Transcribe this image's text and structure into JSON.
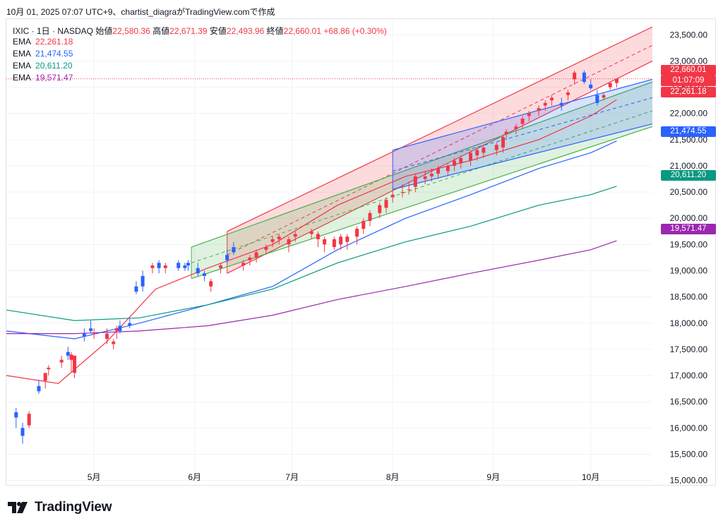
{
  "header": {
    "caption": "10月 01, 2025 07:07 UTC+9、chartist_diagraがTradingView.comで作成"
  },
  "ohlc": {
    "symbol": "IXIC · 1日 · NASDAQ",
    "open_label": "始値",
    "open": "22,580.36",
    "high_label": "高値",
    "high": "22,671.39",
    "low_label": "安値",
    "low": "22,493.96",
    "close_label": "終値",
    "close": "22,660.01",
    "change": "+68.86 (+0.30%)"
  },
  "ema_legend": [
    {
      "label": "EMA",
      "value": "22,261.18",
      "color": "#f23645"
    },
    {
      "label": "EMA",
      "value": "21,474.55",
      "color": "#2962ff"
    },
    {
      "label": "EMA",
      "value": "20,611.20",
      "color": "#089981"
    },
    {
      "label": "EMA",
      "value": "19,571.47",
      "color": "#9c27b0"
    }
  ],
  "price_plates": {
    "last_price": "22,660.01",
    "countdown": "01:07:09",
    "ema1": "22,261.18",
    "ema2": "21,474.55",
    "ema3": "20,611.20",
    "ema4": "19,571.47"
  },
  "brand": {
    "name": "TradingView"
  },
  "colors": {
    "up": "#f23645",
    "down": "#2962ff",
    "ema1": "#f23645",
    "ema2": "#2962ff",
    "ema3": "#089981",
    "ema4": "#9c27b0"
  },
  "chart_data": {
    "type": "candlestick",
    "title": "IXIC · 1日 · NASDAQ",
    "ylim": [
      14900,
      23800
    ],
    "y_ticks": [
      "23,500.00",
      "23,000.00",
      "22,500.00",
      "22,000.00",
      "21,500.00",
      "21,000.00",
      "20,500.00",
      "20,000.00",
      "19,500.00",
      "19,000.00",
      "18,500.00",
      "18,000.00",
      "17,500.00",
      "17,000.00",
      "16,500.00",
      "16,000.00",
      "15,500.00",
      "15,000.00"
    ],
    "x_ticks": [
      "5月",
      "6月",
      "7月",
      "8月",
      "9月",
      "10月"
    ],
    "x_range": [
      "2025-04-04",
      "2025-10-20"
    ],
    "candles": [
      [
        "2025-04-07",
        16300,
        16380,
        16000,
        16200
      ],
      [
        "2025-04-09",
        16000,
        16100,
        15700,
        15850
      ],
      [
        "2025-04-11",
        16050,
        16320,
        16000,
        16270
      ],
      [
        "2025-04-14",
        16800,
        16920,
        16650,
        16700
      ],
      [
        "2025-04-16",
        16900,
        17000,
        16750,
        17050
      ],
      [
        "2025-04-17",
        17120,
        17200,
        17000,
        17150
      ],
      [
        "2025-04-21",
        17250,
        17380,
        17150,
        17300
      ],
      [
        "2025-04-23",
        17450,
        17550,
        17300,
        17380
      ],
      [
        "2025-04-24",
        17300,
        17450,
        17050,
        17400
      ],
      [
        "2025-04-25",
        17050,
        17300,
        16950,
        17380
      ],
      [
        "2025-04-28",
        17800,
        17900,
        17650,
        17750
      ],
      [
        "2025-04-30",
        17900,
        18050,
        17800,
        17850
      ],
      [
        "2025-05-01",
        17800,
        17900,
        17700,
        17800
      ],
      [
        "2025-05-05",
        17700,
        17900,
        17600,
        17800
      ],
      [
        "2025-05-07",
        17600,
        17700,
        17500,
        17650
      ],
      [
        "2025-05-08",
        17850,
        17950,
        17700,
        17900
      ],
      [
        "2025-05-09",
        17950,
        18050,
        17800,
        17850
      ],
      [
        "2025-05-12",
        18000,
        18100,
        17900,
        17950
      ],
      [
        "2025-05-14",
        18700,
        18800,
        18550,
        18600
      ],
      [
        "2025-05-16",
        18900,
        19000,
        18600,
        18700
      ],
      [
        "2025-05-19",
        19050,
        19150,
        18950,
        19100
      ],
      [
        "2025-05-21",
        19150,
        19200,
        18950,
        19050
      ],
      [
        "2025-05-23",
        19050,
        19150,
        18950,
        19100
      ],
      [
        "2025-05-27",
        19150,
        19200,
        19000,
        19050
      ],
      [
        "2025-05-29",
        19100,
        19150,
        19000,
        19050
      ],
      [
        "2025-05-30",
        19150,
        19200,
        19000,
        19100
      ],
      [
        "2025-06-02",
        19050,
        19150,
        18900,
        18950
      ],
      [
        "2025-06-04",
        18950,
        19000,
        18800,
        18900
      ],
      [
        "2025-06-06",
        18700,
        18850,
        18600,
        18800
      ],
      [
        "2025-06-09",
        19050,
        19150,
        18950,
        19100
      ],
      [
        "2025-06-11",
        19300,
        19400,
        19150,
        19200
      ],
      [
        "2025-06-13",
        19450,
        19550,
        19300,
        19350
      ],
      [
        "2025-06-16",
        19100,
        19200,
        19000,
        19150
      ],
      [
        "2025-06-18",
        19200,
        19300,
        19100,
        19250
      ],
      [
        "2025-06-20",
        19250,
        19400,
        19150,
        19350
      ],
      [
        "2025-06-23",
        19400,
        19500,
        19300,
        19450
      ],
      [
        "2025-06-25",
        19550,
        19650,
        19450,
        19600
      ],
      [
        "2025-06-27",
        19600,
        19700,
        19500,
        19650
      ],
      [
        "2025-06-30",
        19500,
        19650,
        19350,
        19600
      ],
      [
        "2025-07-02",
        19650,
        19750,
        19550,
        19700
      ],
      [
        "2025-07-07",
        19700,
        19800,
        19600,
        19750
      ],
      [
        "2025-07-09",
        19600,
        19750,
        19450,
        19700
      ],
      [
        "2025-07-11",
        19500,
        19650,
        19350,
        19600
      ],
      [
        "2025-07-14",
        19450,
        19650,
        19400,
        19600
      ],
      [
        "2025-07-16",
        19500,
        19700,
        19400,
        19650
      ],
      [
        "2025-07-18",
        19550,
        19700,
        19400,
        19650
      ],
      [
        "2025-07-21",
        19650,
        19850,
        19500,
        19800
      ],
      [
        "2025-07-23",
        19800,
        20000,
        19700,
        19950
      ],
      [
        "2025-07-25",
        19950,
        20150,
        19850,
        20100
      ],
      [
        "2025-07-28",
        20100,
        20300,
        20000,
        20250
      ],
      [
        "2025-07-30",
        20200,
        20400,
        20100,
        20350
      ],
      [
        "2025-08-01",
        20400,
        20550,
        20300,
        20450
      ],
      [
        "2025-08-04",
        20500,
        20650,
        20400,
        20500
      ],
      [
        "2025-08-06",
        20550,
        20700,
        20450,
        20550
      ],
      [
        "2025-08-08",
        20600,
        20850,
        20500,
        20800
      ],
      [
        "2025-08-11",
        20750,
        20900,
        20650,
        20800
      ],
      [
        "2025-08-13",
        20800,
        20950,
        20700,
        20850
      ],
      [
        "2025-08-15",
        20850,
        21000,
        20750,
        20950
      ],
      [
        "2025-08-18",
        20900,
        21050,
        20800,
        21000
      ],
      [
        "2025-08-20",
        21000,
        21150,
        20900,
        21100
      ],
      [
        "2025-08-22",
        21050,
        21200,
        20950,
        21150
      ],
      [
        "2025-08-25",
        21100,
        21300,
        21000,
        21250
      ],
      [
        "2025-08-27",
        21200,
        21350,
        21100,
        21300
      ],
      [
        "2025-08-29",
        21250,
        21400,
        21150,
        21350
      ],
      [
        "2025-09-02",
        21300,
        21450,
        21200,
        21400
      ],
      [
        "2025-09-04",
        21350,
        21600,
        21250,
        21550
      ],
      [
        "2025-09-05",
        21600,
        21700,
        21500,
        21650
      ],
      [
        "2025-09-08",
        21700,
        21800,
        21600,
        21750
      ],
      [
        "2025-09-10",
        21800,
        21950,
        21700,
        21900
      ],
      [
        "2025-09-12",
        21950,
        22050,
        21850,
        22000
      ],
      [
        "2025-09-15",
        22050,
        22150,
        21950,
        22100
      ],
      [
        "2025-09-17",
        22150,
        22250,
        22050,
        22200
      ],
      [
        "2025-09-19",
        22250,
        22350,
        22150,
        22300
      ],
      [
        "2025-09-22",
        22200,
        22300,
        22050,
        22150
      ],
      [
        "2025-09-24",
        22350,
        22450,
        22250,
        22400
      ],
      [
        "2025-09-26",
        22650,
        22820,
        22550,
        22780
      ],
      [
        "2025-09-29",
        22780,
        22820,
        22560,
        22600
      ],
      [
        "2025-10-01",
        22550,
        22650,
        22450,
        22480
      ],
      [
        "2025-10-03",
        22350,
        22450,
        22150,
        22200
      ],
      [
        "2025-10-05",
        22300,
        22400,
        22250,
        22350
      ],
      [
        "2025-10-07",
        22500,
        22600,
        22450,
        22580
      ],
      [
        "2025-10-09",
        22580.36,
        22671.39,
        22493.96,
        22660.01
      ]
    ],
    "ema_series": [
      {
        "name": "EMA",
        "color": "#f23645",
        "points": [
          [
            "2025-04-04",
            17000
          ],
          [
            "2025-04-20",
            16850
          ],
          [
            "2025-05-05",
            17650
          ],
          [
            "2025-05-20",
            18650
          ],
          [
            "2025-06-05",
            19050
          ],
          [
            "2025-06-25",
            19500
          ],
          [
            "2025-07-15",
            20250
          ],
          [
            "2025-08-05",
            20800
          ],
          [
            "2025-08-25",
            21100
          ],
          [
            "2025-09-15",
            21500
          ],
          [
            "2025-10-01",
            21950
          ],
          [
            "2025-10-09",
            22261.18
          ]
        ]
      },
      {
        "name": "EMA",
        "color": "#2962ff",
        "points": [
          [
            "2025-04-04",
            17850
          ],
          [
            "2025-04-25",
            17700
          ],
          [
            "2025-05-15",
            18000
          ],
          [
            "2025-06-05",
            18350
          ],
          [
            "2025-06-25",
            18700
          ],
          [
            "2025-07-15",
            19400
          ],
          [
            "2025-08-05",
            20000
          ],
          [
            "2025-08-25",
            20450
          ],
          [
            "2025-09-15",
            20950
          ],
          [
            "2025-10-01",
            21250
          ],
          [
            "2025-10-09",
            21474.55
          ]
        ]
      },
      {
        "name": "EMA",
        "color": "#089981",
        "points": [
          [
            "2025-04-04",
            18250
          ],
          [
            "2025-04-25",
            18050
          ],
          [
            "2025-05-15",
            18100
          ],
          [
            "2025-06-05",
            18350
          ],
          [
            "2025-06-25",
            18650
          ],
          [
            "2025-07-15",
            19150
          ],
          [
            "2025-08-05",
            19550
          ],
          [
            "2025-08-25",
            19850
          ],
          [
            "2025-09-15",
            20250
          ],
          [
            "2025-10-01",
            20450
          ],
          [
            "2025-10-09",
            20611.2
          ]
        ]
      },
      {
        "name": "EMA",
        "color": "#9c27b0",
        "points": [
          [
            "2025-04-04",
            17800
          ],
          [
            "2025-04-25",
            17800
          ],
          [
            "2025-05-15",
            17850
          ],
          [
            "2025-06-05",
            17950
          ],
          [
            "2025-06-25",
            18150
          ],
          [
            "2025-07-15",
            18450
          ],
          [
            "2025-08-05",
            18700
          ],
          [
            "2025-08-25",
            18950
          ],
          [
            "2025-09-15",
            19200
          ],
          [
            "2025-10-01",
            19400
          ],
          [
            "2025-10-09",
            19571.47
          ]
        ]
      }
    ],
    "channels": [
      {
        "color": "#f23645",
        "fill": "rgba(242,54,69,0.18)",
        "upper": [
          [
            "2025-06-11",
            19750
          ],
          [
            "2025-10-20",
            23650
          ]
        ],
        "mid": [
          [
            "2025-06-11",
            19300
          ],
          [
            "2025-10-20",
            23300
          ]
        ],
        "lower": [
          [
            "2025-06-11",
            18950
          ],
          [
            "2025-10-20",
            23000
          ]
        ]
      },
      {
        "color": "#4caf50",
        "fill": "rgba(76,175,80,0.18)",
        "upper": [
          [
            "2025-05-31",
            19450
          ],
          [
            "2025-10-20",
            22600
          ]
        ],
        "mid": [
          [
            "2025-05-31",
            19150
          ],
          [
            "2025-10-20",
            22050
          ]
        ],
        "lower": [
          [
            "2025-05-31",
            18850
          ],
          [
            "2025-10-20",
            21750
          ]
        ]
      },
      {
        "color": "#2962ff",
        "fill": "rgba(41,98,255,0.18)",
        "upper": [
          [
            "2025-08-01",
            21300
          ],
          [
            "2025-10-20",
            22650
          ]
        ],
        "mid": [
          [
            "2025-08-01",
            20900
          ],
          [
            "2025-10-20",
            22300
          ]
        ],
        "lower": [
          [
            "2025-08-01",
            20550
          ],
          [
            "2025-10-20",
            21800
          ]
        ]
      }
    ],
    "last_close": 22660.01
  }
}
